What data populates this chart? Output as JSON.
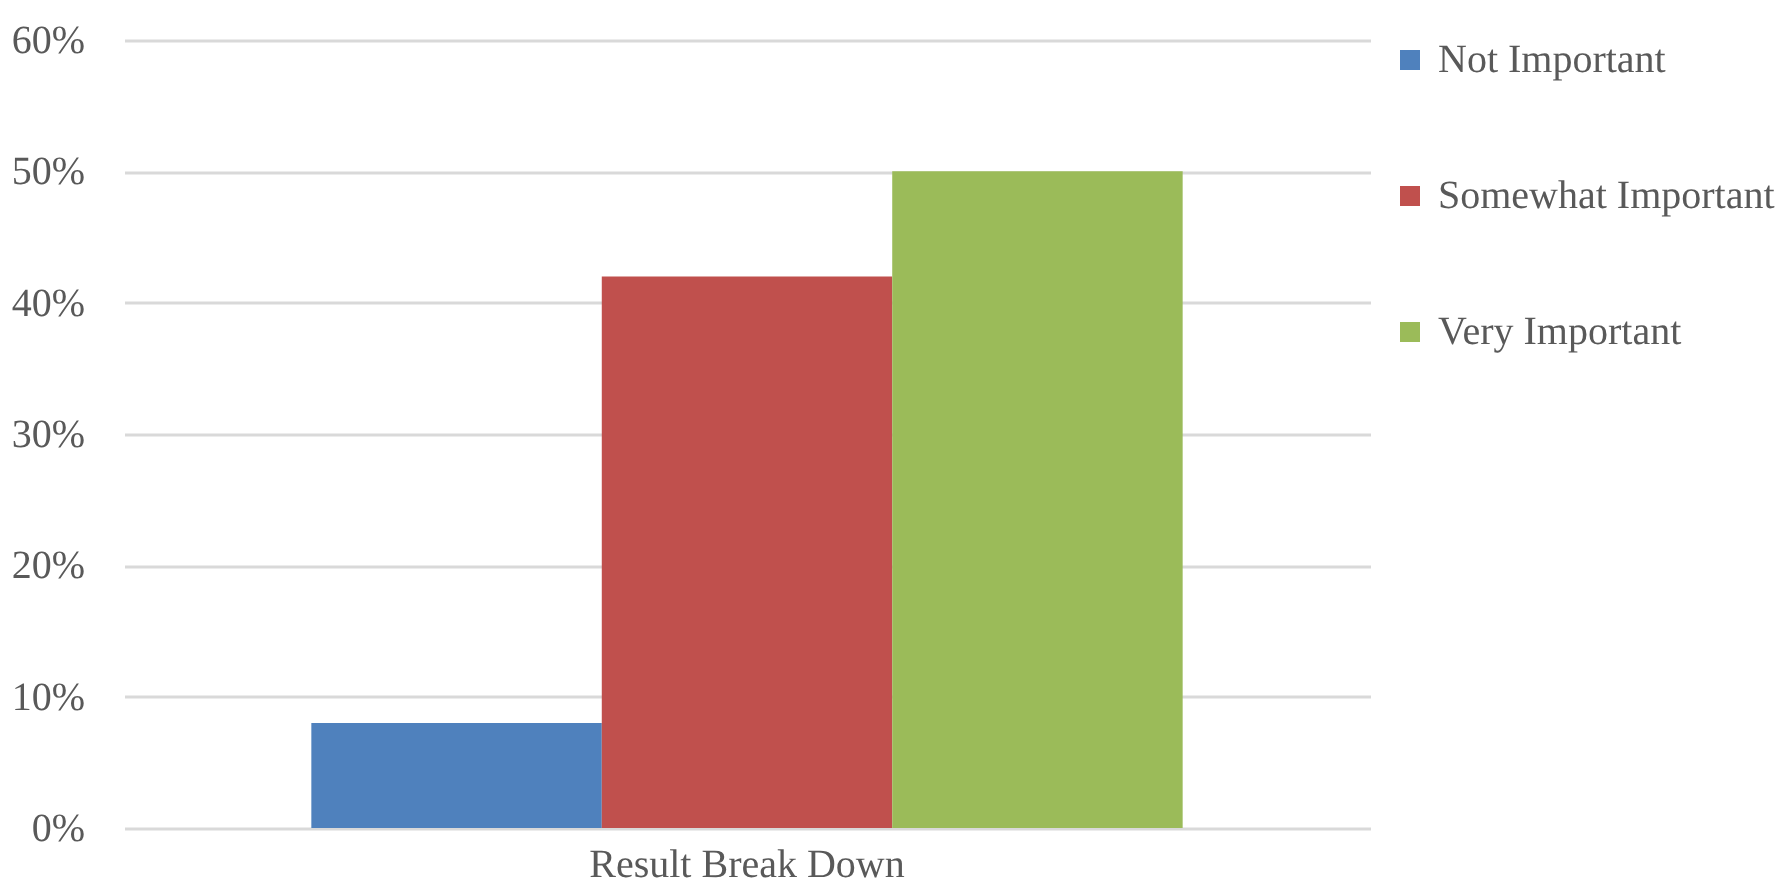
{
  "chart_data": {
    "type": "bar",
    "categories": [
      "Result Break Down"
    ],
    "series": [
      {
        "name": "Not Important",
        "color": "#4f81bd",
        "values": [
          8
        ]
      },
      {
        "name": "Somewhat Important",
        "color": "#c0504d",
        "values": [
          42
        ]
      },
      {
        "name": "Very Important",
        "color": "#9bbb59",
        "values": [
          50
        ]
      }
    ],
    "ylim": [
      0,
      60
    ],
    "yticks": [
      {
        "value": 0,
        "label": "0%"
      },
      {
        "value": 10,
        "label": "10%"
      },
      {
        "value": 20,
        "label": "20%"
      },
      {
        "value": 30,
        "label": "30%"
      },
      {
        "value": 40,
        "label": "40%"
      },
      {
        "value": 50,
        "label": "50%"
      },
      {
        "value": 60,
        "label": "60%"
      }
    ],
    "grid": "y",
    "legend": "right"
  }
}
